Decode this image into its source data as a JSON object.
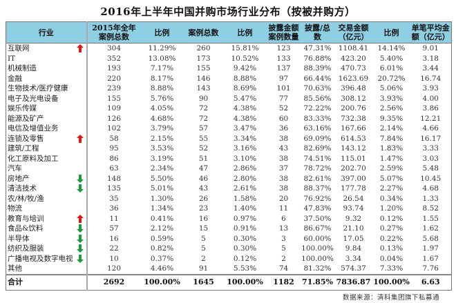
{
  "title": "2016年上半年中国并购市场行业分布（按被并购方）",
  "headers": [
    "行业",
    "2015年全年\n案例总数",
    "比例",
    "案例总数",
    "比例",
    "披露金额\n案例数量",
    "披露/总\n数",
    "交易金额\n（亿元）",
    "比例",
    "单笔平均金\n额（亿元）"
  ],
  "colors": {
    "header_bg": "#8fcfe3",
    "arrow_up": "#e8140f",
    "arrow_down": "#1a9c3c"
  },
  "rows": [
    {
      "industry": "互联网",
      "trend": "up",
      "c2015": "304",
      "r2015": "11.29%",
      "cases": "260",
      "ratio": "15.81%",
      "disclosed": "123",
      "disc_ratio": "47.31%",
      "amount": "1108.41",
      "amt_ratio": "14.14%",
      "avg": "9.01"
    },
    {
      "industry": "IT",
      "trend": "",
      "c2015": "352",
      "r2015": "13.08%",
      "cases": "173",
      "ratio": "10.52%",
      "disclosed": "133",
      "disc_ratio": "76.88%",
      "amount": "423.20",
      "amt_ratio": "5.40%",
      "avg": "3.18"
    },
    {
      "industry": "机械制造",
      "trend": "",
      "c2015": "193",
      "r2015": "7.17%",
      "cases": "155",
      "ratio": "9.42%",
      "disclosed": "137",
      "disc_ratio": "88.39%",
      "amount": "470.73",
      "amt_ratio": "6.01%",
      "avg": "3.44"
    },
    {
      "industry": "金融",
      "trend": "",
      "c2015": "220",
      "r2015": "8.17%",
      "cases": "146",
      "ratio": "8.88%",
      "disclosed": "97",
      "disc_ratio": "66.44%",
      "amount": "1623.69",
      "amt_ratio": "20.72%",
      "avg": "16.74"
    },
    {
      "industry": "生物技术/医疗健康",
      "trend": "",
      "c2015": "239",
      "r2015": "8.88%",
      "cases": "143",
      "ratio": "8.69%",
      "disclosed": "101",
      "disc_ratio": "70.63%",
      "amount": "396.48",
      "amt_ratio": "5.06%",
      "avg": "3.93"
    },
    {
      "industry": "电子及光电设备",
      "trend": "",
      "c2015": "155",
      "r2015": "5.76%",
      "cases": "90",
      "ratio": "5.47%",
      "disclosed": "77",
      "disc_ratio": "85.56%",
      "amount": "308.12",
      "amt_ratio": "3.93%",
      "avg": "4.00"
    },
    {
      "industry": "娱乐传媒",
      "trend": "",
      "c2015": "109",
      "r2015": "4.05%",
      "cases": "72",
      "ratio": "4.38%",
      "disclosed": "52",
      "disc_ratio": "72.22%",
      "amount": "200.76",
      "amt_ratio": "2.56%",
      "avg": "3.86"
    },
    {
      "industry": "能源及矿产",
      "trend": "",
      "c2015": "126",
      "r2015": "4.68%",
      "cases": "72",
      "ratio": "4.38%",
      "disclosed": "60",
      "disc_ratio": "83.33%",
      "amount": "732.38",
      "amt_ratio": "9.35%",
      "avg": "12.21"
    },
    {
      "industry": "电信及增值业务",
      "trend": "",
      "c2015": "102",
      "r2015": "3.79%",
      "cases": "57",
      "ratio": "3.47%",
      "disclosed": "36",
      "disc_ratio": "63.16%",
      "amount": "167.66",
      "amt_ratio": "2.14%",
      "avg": "4.66"
    },
    {
      "industry": "连锁及零售",
      "trend": "up",
      "c2015": "58",
      "r2015": "2.15%",
      "cases": "55",
      "ratio": "3.34%",
      "disclosed": "38",
      "disc_ratio": "69.09%",
      "amount": "614.53",
      "amt_ratio": "7.84%",
      "avg": "16.17"
    },
    {
      "industry": "建筑/工程",
      "trend": "",
      "c2015": "95",
      "r2015": "3.53%",
      "cases": "52",
      "ratio": "3.16%",
      "disclosed": "43",
      "disc_ratio": "82.69%",
      "amount": "143.12",
      "amt_ratio": "1.83%",
      "avg": "3.33"
    },
    {
      "industry": "化工原料及加工",
      "trend": "",
      "c2015": "86",
      "r2015": "3.19%",
      "cases": "51",
      "ratio": "3.10%",
      "disclosed": "38",
      "disc_ratio": "74.51%",
      "amount": "115.01",
      "amt_ratio": "1.47%",
      "avg": "3.03"
    },
    {
      "industry": "汽车",
      "trend": "",
      "c2015": "63",
      "r2015": "2.34%",
      "cases": "47",
      "ratio": "2.86%",
      "disclosed": "37",
      "disc_ratio": "78.72%",
      "amount": "202.70",
      "amt_ratio": "2.59%",
      "avg": "5.48"
    },
    {
      "industry": "房地产",
      "trend": "down",
      "c2015": "148",
      "r2015": "5.50%",
      "cases": "46",
      "ratio": "2.80%",
      "disclosed": "38",
      "disc_ratio": "82.61%",
      "amount": "397.00",
      "amt_ratio": "5.07%",
      "avg": "10.45"
    },
    {
      "industry": "清洁技术",
      "trend": "down",
      "c2015": "135",
      "r2015": "5.01%",
      "cases": "43",
      "ratio": "2.61%",
      "disclosed": "38",
      "disc_ratio": "88.37%",
      "amount": "177.78",
      "amt_ratio": "2.27%",
      "avg": "4.68"
    },
    {
      "industry": "农/林/牧/渔",
      "trend": "",
      "c2015": "35",
      "r2015": "1.30%",
      "cases": "26",
      "ratio": "1.58%",
      "disclosed": "20",
      "disc_ratio": "76.92%",
      "amount": "26.54",
      "amt_ratio": "0.34%",
      "avg": "1.33"
    },
    {
      "industry": "物流",
      "trend": "",
      "c2015": "36",
      "r2015": "1.34%",
      "cases": "23",
      "ratio": "1.40%",
      "disclosed": "11",
      "disc_ratio": "47.83%",
      "amount": "93.74",
      "amt_ratio": "1.20%",
      "avg": "8.52"
    },
    {
      "industry": "教育与培训",
      "trend": "up",
      "c2015": "11",
      "r2015": "0.41%",
      "cases": "16",
      "ratio": "0.97%",
      "disclosed": "6",
      "disc_ratio": "37.50%",
      "amount": "9.32",
      "amt_ratio": "0.12%",
      "avg": "1.55"
    },
    {
      "industry": "食品&饮料",
      "trend": "down",
      "c2015": "57",
      "r2015": "2.12%",
      "cases": "15",
      "ratio": "0.91%",
      "disclosed": "13",
      "disc_ratio": "86.67%",
      "amount": "21.10",
      "amt_ratio": "0.27%",
      "avg": "1.62"
    },
    {
      "industry": "半导体",
      "trend": "down",
      "c2015": "16",
      "r2015": "0.59%",
      "cases": "5",
      "ratio": "0.30%",
      "disclosed": "3",
      "disc_ratio": "60.00%",
      "amount": "17.05",
      "amt_ratio": "0.22%",
      "avg": "5.68"
    },
    {
      "industry": "纺织及服装",
      "trend": "down",
      "c2015": "22",
      "r2015": "0.82%",
      "cases": "5",
      "ratio": "0.30%",
      "disclosed": "5",
      "disc_ratio": "100.00%",
      "amount": "9.84",
      "amt_ratio": "0.13%",
      "avg": "1.97"
    },
    {
      "industry": "广播电视及数字电视",
      "trend": "down",
      "c2015": "10",
      "r2015": "0.37%",
      "cases": "2",
      "ratio": "0.12%",
      "disclosed": "2",
      "disc_ratio": "100.00%",
      "amount": "3.34",
      "amt_ratio": "0.04%",
      "avg": "1.67"
    },
    {
      "industry": "其他",
      "trend": "",
      "c2015": "120",
      "r2015": "4.46%",
      "cases": "91",
      "ratio": "5.53%",
      "disclosed": "74",
      "disc_ratio": "81.32%",
      "amount": "574.37",
      "amt_ratio": "7.33%",
      "avg": "7.76"
    }
  ],
  "total": {
    "industry": "合计",
    "c2015": "2692",
    "r2015": "100.00%",
    "cases": "1645",
    "ratio": "100.00%",
    "disclosed": "1182",
    "disc_ratio": "71.85%",
    "amount": "7836.87",
    "amt_ratio": "100.00%",
    "avg": "6.63"
  },
  "source": "数据来源：清科集团旗下私募通"
}
